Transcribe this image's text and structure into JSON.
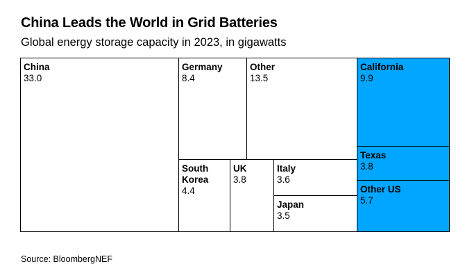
{
  "title": "China Leads the World in Grid Batteries",
  "subtitle": "Global energy storage capacity in 2023, in gigawatts",
  "source": "Source: BloombergNEF",
  "colors": {
    "us_highlight": "#00a6ff",
    "other": "#ffffff",
    "border": "#000000"
  },
  "chart_data": {
    "type": "treemap",
    "title": "China Leads the World in Grid Batteries",
    "subtitle": "Global energy storage capacity in 2023, in gigawatts",
    "unit": "GW",
    "items": [
      {
        "label": "China",
        "value": 33.0,
        "display": "33.0",
        "group": "world"
      },
      {
        "label": "Germany",
        "value": 8.4,
        "display": "8.4",
        "group": "world"
      },
      {
        "label": "Other",
        "value": 13.5,
        "display": "13.5",
        "group": "world"
      },
      {
        "label": "South Korea",
        "value": 4.4,
        "display": "4.4",
        "group": "world"
      },
      {
        "label": "UK",
        "value": 3.8,
        "display": "3.8",
        "group": "world"
      },
      {
        "label": "Italy",
        "value": 3.6,
        "display": "3.6",
        "group": "world"
      },
      {
        "label": "Japan",
        "value": 3.5,
        "display": "3.5",
        "group": "world"
      },
      {
        "label": "California",
        "value": 9.9,
        "display": "9.9",
        "group": "us"
      },
      {
        "label": "Texas",
        "value": 3.8,
        "display": "3.8",
        "group": "us"
      },
      {
        "label": "Other US",
        "value": 5.7,
        "display": "5.7",
        "group": "us"
      }
    ]
  }
}
